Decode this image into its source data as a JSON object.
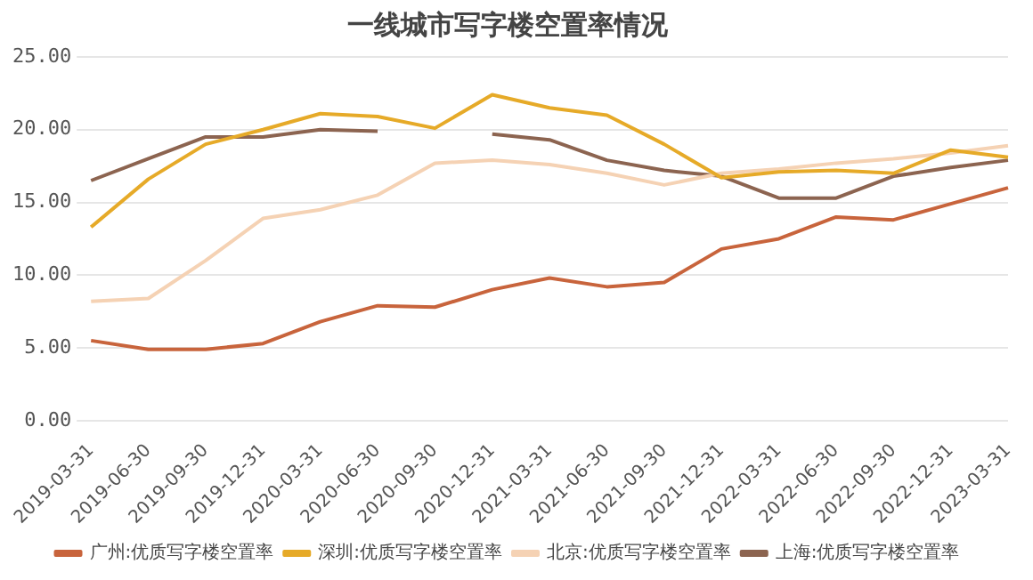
{
  "chart_data": {
    "type": "line",
    "title": "一线城市写字楼空置率情况",
    "categories": [
      "2019-03-31",
      "2019-06-30",
      "2019-09-30",
      "2019-12-31",
      "2020-03-31",
      "2020-06-30",
      "2020-09-30",
      "2020-12-31",
      "2021-03-31",
      "2021-06-30",
      "2021-09-30",
      "2021-12-31",
      "2022-03-31",
      "2022-06-30",
      "2022-09-30",
      "2022-12-31",
      "2023-03-31"
    ],
    "series": [
      {
        "name": "广州:优质写字楼空置率",
        "color": "#c8643c",
        "values": [
          5.5,
          4.9,
          4.9,
          5.3,
          6.8,
          7.9,
          7.8,
          9.0,
          9.8,
          9.2,
          9.5,
          11.8,
          12.5,
          14.0,
          13.8,
          14.9,
          16.0
        ]
      },
      {
        "name": "深圳:优质写字楼空置率",
        "color": "#e6aa28",
        "values": [
          13.3,
          16.6,
          19.0,
          20.0,
          21.1,
          20.9,
          20.1,
          22.4,
          21.5,
          21.0,
          19.0,
          16.7,
          17.1,
          17.2,
          17.0,
          18.6,
          18.1
        ]
      },
      {
        "name": "北京:优质写字楼空置率",
        "color": "#f5d2b4",
        "values": [
          8.2,
          8.4,
          11.0,
          13.9,
          14.5,
          15.5,
          17.7,
          17.9,
          17.6,
          17.0,
          16.2,
          17.0,
          17.3,
          17.7,
          18.0,
          18.4,
          18.9
        ]
      },
      {
        "name": "上海:优质写字楼空置率",
        "color": "#8c6450",
        "values": [
          16.5,
          18.0,
          19.5,
          19.5,
          20.0,
          19.9,
          null,
          19.7,
          19.3,
          17.9,
          17.2,
          16.8,
          15.3,
          15.3,
          16.8,
          17.4,
          17.9
        ]
      }
    ],
    "ylim": [
      0,
      25
    ],
    "yticks": [
      {
        "value": 0,
        "label": "0.00"
      },
      {
        "value": 5,
        "label": "5.00"
      },
      {
        "value": 10,
        "label": "10.00"
      },
      {
        "value": 15,
        "label": "15.00"
      },
      {
        "value": 20,
        "label": "20.00"
      },
      {
        "value": 25,
        "label": "25.00"
      }
    ],
    "grid": "y",
    "legend": "bottom",
    "marker": "none",
    "line_style": "solid"
  }
}
